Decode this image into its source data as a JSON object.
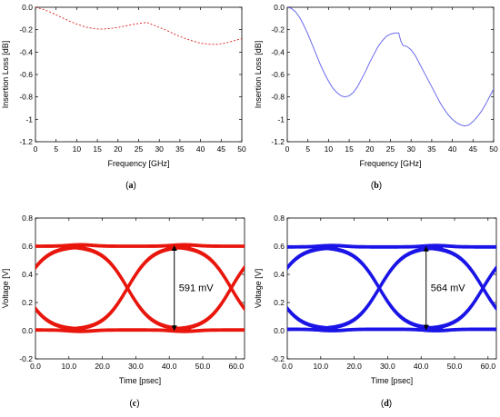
{
  "colors": {
    "red": "#e8160c",
    "blue": "#1a14e6",
    "dotted_red": "#e03030",
    "thin_blue": "#6a6aee"
  },
  "chart_data": [
    {
      "type": "line",
      "caption_letter": "a",
      "xlabel": "Frequency [GHz]",
      "ylabel": "Insertion Loss [dB]",
      "xlim": [
        0,
        50
      ],
      "ylim": [
        -1.2,
        0
      ],
      "xticks": [
        "0",
        "5",
        "10",
        "15",
        "20",
        "25",
        "30",
        "35",
        "40",
        "45",
        "50"
      ],
      "yticks": [
        "0.0",
        "-0.2",
        "-0.4",
        "-0.6",
        "-0.8",
        "-1",
        "-1.2"
      ],
      "grid": false,
      "line_style": "dotted",
      "series": [
        {
          "x": [
            0,
            2,
            4,
            6,
            8,
            10,
            12,
            14,
            16,
            18,
            20,
            22,
            24,
            26,
            27,
            28,
            30,
            32,
            34,
            36,
            38,
            40,
            42,
            44,
            46,
            48,
            50
          ],
          "values": [
            0,
            -0.02,
            -0.05,
            -0.085,
            -0.12,
            -0.15,
            -0.175,
            -0.19,
            -0.195,
            -0.19,
            -0.18,
            -0.165,
            -0.15,
            -0.14,
            -0.135,
            -0.15,
            -0.18,
            -0.21,
            -0.245,
            -0.275,
            -0.3,
            -0.32,
            -0.33,
            -0.33,
            -0.32,
            -0.3,
            -0.28
          ]
        }
      ]
    },
    {
      "type": "line",
      "caption_letter": "b",
      "xlabel": "Frequency [GHz]",
      "ylabel": "Insertion Loss [dB]",
      "xlim": [
        0,
        50
      ],
      "ylim": [
        -1.2,
        0
      ],
      "xticks": [
        "0",
        "5",
        "10",
        "15",
        "20",
        "25",
        "30",
        "35",
        "40",
        "45",
        "50"
      ],
      "yticks": [
        "0.0",
        "-0.2",
        "-0.4",
        "-0.6",
        "-0.8",
        "-1",
        "-1.2"
      ],
      "grid": false,
      "line_style": "solid",
      "series": [
        {
          "x": [
            0,
            1,
            2,
            3,
            4,
            5,
            6,
            7,
            8,
            9,
            10,
            11,
            12,
            13,
            14,
            15,
            16,
            17,
            18,
            19,
            20,
            21,
            22,
            23,
            24,
            25,
            26,
            27,
            27.5,
            28,
            29,
            30,
            31,
            32,
            33,
            34,
            35,
            36,
            37,
            38,
            39,
            40,
            41,
            42,
            43,
            44,
            45,
            46,
            47,
            48,
            49,
            50
          ],
          "values": [
            0,
            -0.01,
            -0.04,
            -0.09,
            -0.16,
            -0.24,
            -0.33,
            -0.42,
            -0.51,
            -0.59,
            -0.66,
            -0.72,
            -0.76,
            -0.79,
            -0.8,
            -0.79,
            -0.76,
            -0.71,
            -0.64,
            -0.57,
            -0.49,
            -0.42,
            -0.35,
            -0.3,
            -0.26,
            -0.24,
            -0.23,
            -0.23,
            -0.3,
            -0.34,
            -0.35,
            -0.38,
            -0.43,
            -0.5,
            -0.57,
            -0.64,
            -0.71,
            -0.78,
            -0.85,
            -0.91,
            -0.96,
            -1.0,
            -1.03,
            -1.05,
            -1.06,
            -1.05,
            -1.02,
            -0.98,
            -0.93,
            -0.87,
            -0.8,
            -0.73
          ]
        }
      ]
    },
    {
      "type": "line",
      "caption_letter": "c",
      "xlabel": "Time [psec]",
      "ylabel": "Voltage [V]",
      "xlim": [
        0,
        62.5
      ],
      "ylim": [
        -0.2,
        0.8
      ],
      "xticks": [
        "0.0",
        "10.0",
        "20.0",
        "30.0",
        "40.0",
        "50.0",
        "60.0"
      ],
      "yticks": [
        "0.8",
        "0.6",
        "0.4",
        "0.2",
        "0.0",
        "-0.2"
      ],
      "grid": false,
      "eye_high": 0.6,
      "eye_low": 0.005,
      "eye_crossings": [
        -4,
        27.5,
        58.5
      ],
      "annotation": "591 mV",
      "annotation_x": 41.5
    },
    {
      "type": "line",
      "caption_letter": "d",
      "xlabel": "Time [psec]",
      "ylabel": "Voltage [V]",
      "xlim": [
        0,
        62.5
      ],
      "ylim": [
        -0.2,
        0.8
      ],
      "xticks": [
        "0.0",
        "10.0",
        "20.0",
        "30.0",
        "40.0",
        "50.0",
        "60.0"
      ],
      "yticks": [
        "0.8",
        "0.6",
        "0.4",
        "0.2",
        "0.0",
        "-0.2"
      ],
      "grid": false,
      "eye_high": 0.595,
      "eye_low": 0.01,
      "eye_crossings": [
        -4,
        27.5,
        58.5
      ],
      "annotation": "564 mV",
      "annotation_x": 41.5
    }
  ]
}
